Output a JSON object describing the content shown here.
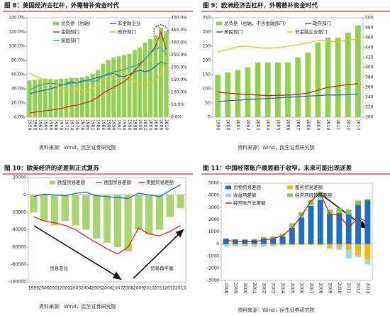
{
  "chart_data": [
    {
      "type": "combo",
      "title": "图 8：美国经济去杠杆，外需替补资金时代",
      "source": "资料来源：Wind，民生证券研究院",
      "categories": [
        "1958",
        "1960",
        "1962",
        "1964",
        "1966",
        "1968",
        "1970",
        "1972",
        "1974",
        "1976",
        "1978",
        "1980",
        "1982",
        "1984",
        "1986",
        "1988",
        "1990",
        "1992",
        "1994",
        "1996",
        "1998",
        "2000",
        "2002",
        "2004",
        "2006",
        "2008",
        "2010"
      ],
      "ylim": [
        0,
        140
      ],
      "yticks": [
        {
          "value": 0,
          "label": "0.0%"
        },
        {
          "value": 20,
          "label": "20.0%"
        },
        {
          "value": 40,
          "label": "40.0%"
        },
        {
          "value": 60,
          "label": "60.0%"
        },
        {
          "value": 80,
          "label": "80.0%"
        },
        {
          "value": 100,
          "label": "100.0%"
        },
        {
          "value": 120,
          "label": "120.0%"
        },
        {
          "value": 140,
          "label": "140.0%"
        }
      ],
      "y2lim": [
        0,
        400
      ],
      "y2ticks": [
        {
          "value": 0,
          "label": "0.0%"
        },
        {
          "value": 50,
          "label": "50.0%"
        },
        {
          "value": 100,
          "label": "100.0%"
        },
        {
          "value": 150,
          "label": "150.0%"
        },
        {
          "value": 200,
          "label": "200.0%"
        },
        {
          "value": 250,
          "label": "250.0%"
        },
        {
          "value": 300,
          "label": "300.0%"
        },
        {
          "value": 350,
          "label": "350.0%"
        },
        {
          "value": 400,
          "label": "400.0%"
        }
      ],
      "series": [
        {
          "name": "总负债（右轴）",
          "type": "bar",
          "axis": "y2",
          "color": "#92d050",
          "values": [
            148,
            150,
            152,
            155,
            153,
            152,
            155,
            155,
            158,
            158,
            160,
            165,
            175,
            190,
            215,
            230,
            240,
            245,
            250,
            255,
            270,
            280,
            300,
            315,
            330,
            360,
            345
          ]
        },
        {
          "name": "非金融企业",
          "type": "line",
          "color": "#1f6fc0",
          "values": [
            33,
            35,
            37,
            38,
            40,
            42,
            45,
            47,
            50,
            48,
            50,
            52,
            54,
            56,
            58,
            60,
            62,
            58,
            57,
            60,
            64,
            66,
            64,
            66,
            72,
            78,
            75
          ]
        },
        {
          "name": "金融部门",
          "type": "line",
          "color": "#d62a1c",
          "values": [
            6,
            7,
            8,
            9,
            10,
            11,
            12,
            14,
            16,
            17,
            19,
            21,
            24,
            28,
            34,
            38,
            42,
            46,
            50,
            56,
            66,
            74,
            82,
            90,
            100,
            120,
            95
          ]
        },
        {
          "name": "政府部门",
          "type": "line",
          "color": "#f0c419",
          "values": [
            62,
            58,
            55,
            52,
            48,
            45,
            42,
            40,
            38,
            40,
            38,
            36,
            40,
            46,
            52,
            56,
            60,
            64,
            62,
            58,
            50,
            45,
            46,
            48,
            50,
            62,
            86
          ]
        },
        {
          "name": "家庭部门",
          "type": "line",
          "color": "#2ab0a8",
          "values": [
            38,
            42,
            45,
            47,
            48,
            47,
            46,
            46,
            48,
            48,
            52,
            52,
            50,
            52,
            58,
            62,
            64,
            65,
            67,
            70,
            72,
            76,
            82,
            90,
            96,
            98,
            88
          ]
        }
      ]
    },
    {
      "type": "combo",
      "title": "图 9：欧洲经济去杠杆，外需替补资金时代",
      "source": "资料来源：Wind，民生证券研究院",
      "categories": [
        "1999",
        "2000",
        "2001",
        "2002",
        "2003",
        "2004",
        "2005",
        "2006",
        "2007",
        "2008",
        "2009",
        "2010",
        "2011",
        "2012",
        "2013"
      ],
      "ylim": [
        0,
        350
      ],
      "yticks": [
        0,
        50,
        100,
        150,
        200,
        250,
        300,
        350
      ],
      "y2lim": [
        300,
        500
      ],
      "y2ticks": [
        300,
        320,
        340,
        360,
        380,
        400,
        420,
        440,
        460,
        480,
        500
      ],
      "series": [
        {
          "name": "总负债（右轴，不含金融部门）",
          "type": "bar",
          "axis": "y2",
          "color": "#92d050",
          "values": [
            385,
            390,
            395,
            400,
            410,
            410,
            410,
            410,
            420,
            430,
            450,
            460,
            460,
            470,
            485
          ]
        },
        {
          "name": "政府部门",
          "type": "line",
          "color": "#c0281c",
          "values": [
            88,
            85,
            82,
            80,
            78,
            76,
            77,
            78,
            80,
            85,
            95,
            105,
            110,
            115,
            118
          ]
        },
        {
          "name": "居民部门",
          "type": "line",
          "color": "#1f6fc0",
          "values": [
            55,
            58,
            60,
            62,
            64,
            66,
            68,
            70,
            72,
            74,
            76,
            78,
            78,
            79,
            80
          ]
        },
        {
          "name": "非金融企业部门",
          "type": "line",
          "color": "#f0c419",
          "values": [
            230,
            238,
            248,
            250,
            245,
            242,
            245,
            250,
            255,
            262,
            270,
            268,
            265,
            272,
            275
          ]
        }
      ]
    },
    {
      "type": "combo",
      "title": "图 10：欧美经济的逆差到正式复苏",
      "source": "资料来源：Wind，民生证券研究院",
      "annotations": [
        "贸易恶化",
        "贸易再平衡"
      ],
      "categories": [
        "1999",
        "2000",
        "2001",
        "2002",
        "2003",
        "2004",
        "2005",
        "2006",
        "2007",
        "2008",
        "2009",
        "2010",
        "2011",
        "2012",
        "2013"
      ],
      "ylim": [
        -100000,
        20000
      ],
      "yticks": [
        -100000,
        -80000,
        -60000,
        -40000,
        -20000,
        0,
        20000
      ],
      "series": [
        {
          "name": "欧盟贸易差额",
          "type": "bar",
          "color": "#a9d46f",
          "values": [
            -20000,
            -30000,
            -35000,
            -30000,
            -35000,
            -40000,
            -50000,
            -55000,
            -60000,
            -65000,
            -40000,
            -45000,
            -40000,
            -25000,
            -15000
          ]
        },
        {
          "name": "德国贸易差额",
          "type": "line",
          "color": "#1f6fc0",
          "values": [
            -2000,
            1000,
            0,
            -1000,
            2000,
            3000,
            -1000,
            -2000,
            -3000,
            -4000,
            2000,
            0,
            -2000,
            5000,
            12000
          ]
        },
        {
          "name": "美国贸易差额",
          "type": "line",
          "color": "#d62a1c",
          "values": [
            -25000,
            -30000,
            -32000,
            -35000,
            -40000,
            -48000,
            -55000,
            -62000,
            -68000,
            -60000,
            -38000,
            -45000,
            -47000,
            -42000,
            -35000
          ]
        }
      ]
    },
    {
      "type": "stacked_combo",
      "title": "图 11：中国经常账户顺差趋于收窄，未来可能出现逆差",
      "source": "资料来源：Wind，民生证券研究院",
      "categories": [
        "1998",
        "1999",
        "2000",
        "2001",
        "2002",
        "2003",
        "2004",
        "2005",
        "2006",
        "2007",
        "2008",
        "2009",
        "2010",
        "2011",
        "2012",
        "2013"
      ],
      "ylim": [
        -3000,
        5000
      ],
      "yticks": [
        -3000,
        -2000,
        -1000,
        0,
        1000,
        2000,
        3000,
        4000,
        5000
      ],
      "series": [
        {
          "name": "货物贸易差额",
          "type": "bar",
          "color": "#1f6fc0",
          "values": [
            435,
            360,
            345,
            340,
            442,
            446,
            590,
            1342,
            2177,
            3150,
            3600,
            2495,
            2542,
            2435,
            3216,
            3599
          ]
        },
        {
          "name": "服务贸易差额",
          "type": "bar",
          "color": "#f5b800",
          "values": [
            -30,
            -50,
            -55,
            -60,
            -68,
            -86,
            -97,
            -94,
            -89,
            -79,
            -118,
            -294,
            -221,
            -468,
            -897,
            -1245
          ]
        },
        {
          "name": "收益项差额",
          "type": "bar",
          "color": "#9dd3e6",
          "values": [
            -166,
            -145,
            -147,
            -192,
            -149,
            -102,
            -35,
            106,
            152,
            80,
            286,
            -85,
            -259,
            -703,
            -199,
            -438
          ]
        },
        {
          "name": "经常项目转移差额",
          "type": "bar",
          "color": "#8bc34a",
          "values": [
            43,
            49,
            63,
            85,
            130,
            174,
            229,
            254,
            291,
            387,
            431,
            337,
            429,
            406,
            347,
            100
          ]
        },
        {
          "name": "经常账户总差额",
          "type": "line",
          "color": "#c0281c",
          "values": [
            314,
            211,
            205,
            174,
            354,
            431,
            689,
            1324,
            2318,
            3532,
            4206,
            2433,
            2378,
            1361,
            2154,
            1828
          ]
        }
      ]
    }
  ]
}
